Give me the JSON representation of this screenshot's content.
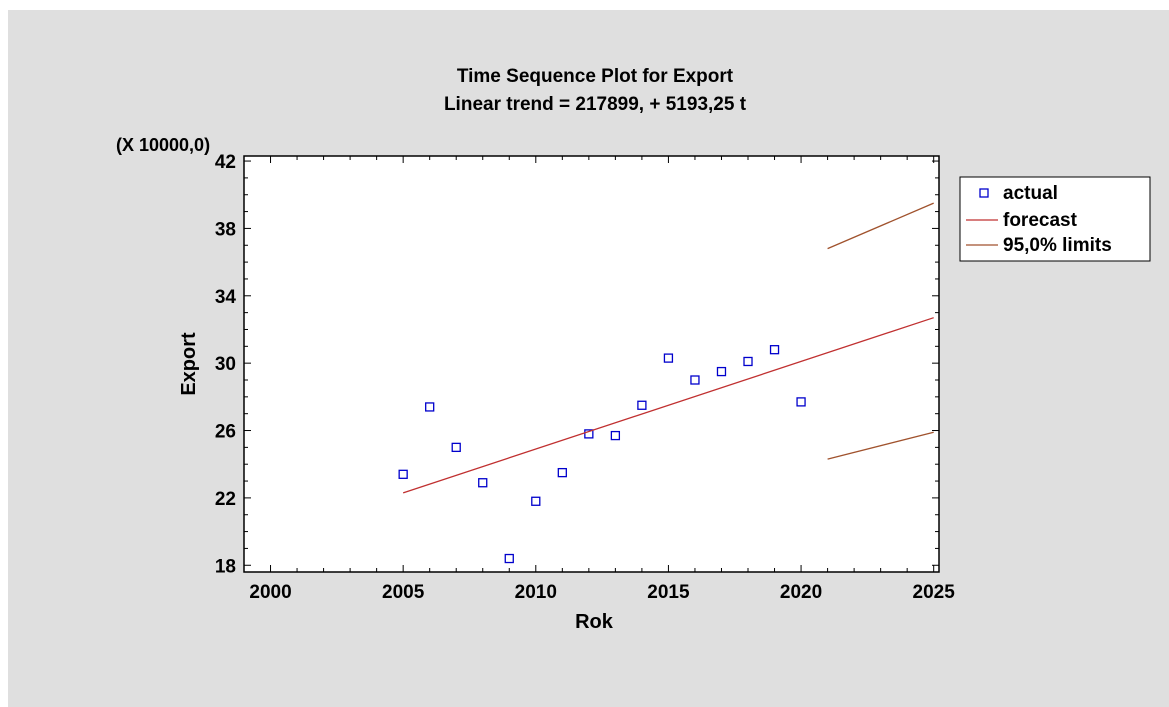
{
  "chart_data": {
    "type": "scatter",
    "title": "Time Sequence Plot for Export",
    "subtitle": "Linear trend = 217899, + 5193,25 t",
    "xlabel": "Rok",
    "ylabel": "Export",
    "y_multiplier_label": "(X 10000,0)",
    "xlim": [
      1999,
      2025.2
    ],
    "ylim": [
      17.6,
      42.3
    ],
    "x_ticks": [
      2000,
      2005,
      2010,
      2015,
      2020,
      2025
    ],
    "y_ticks": [
      18,
      22,
      26,
      30,
      34,
      38,
      42
    ],
    "grid": false,
    "legend_position": "right",
    "series": [
      {
        "name": "actual",
        "kind": "markers",
        "color": "#0000cc",
        "x": [
          2005,
          2006,
          2007,
          2008,
          2009,
          2010,
          2011,
          2012,
          2013,
          2014,
          2015,
          2016,
          2017,
          2018,
          2019,
          2020
        ],
        "y": [
          23.4,
          27.4,
          25.0,
          22.9,
          18.4,
          21.8,
          23.5,
          25.8,
          25.7,
          27.5,
          30.3,
          29.0,
          29.5,
          30.1,
          30.8,
          27.7
        ]
      },
      {
        "name": "forecast",
        "kind": "line",
        "color": "#c03030",
        "x": [
          2005,
          2025
        ],
        "y": [
          22.3,
          32.7
        ]
      },
      {
        "name": "95,0% limits",
        "kind": "line",
        "color": "#a0522d",
        "x": [
          2021,
          2025
        ],
        "y": [
          36.8,
          39.5
        ]
      },
      {
        "name": "",
        "kind": "line",
        "color": "#a0522d",
        "x": [
          2021,
          2025
        ],
        "y": [
          24.3,
          25.9
        ]
      }
    ]
  }
}
